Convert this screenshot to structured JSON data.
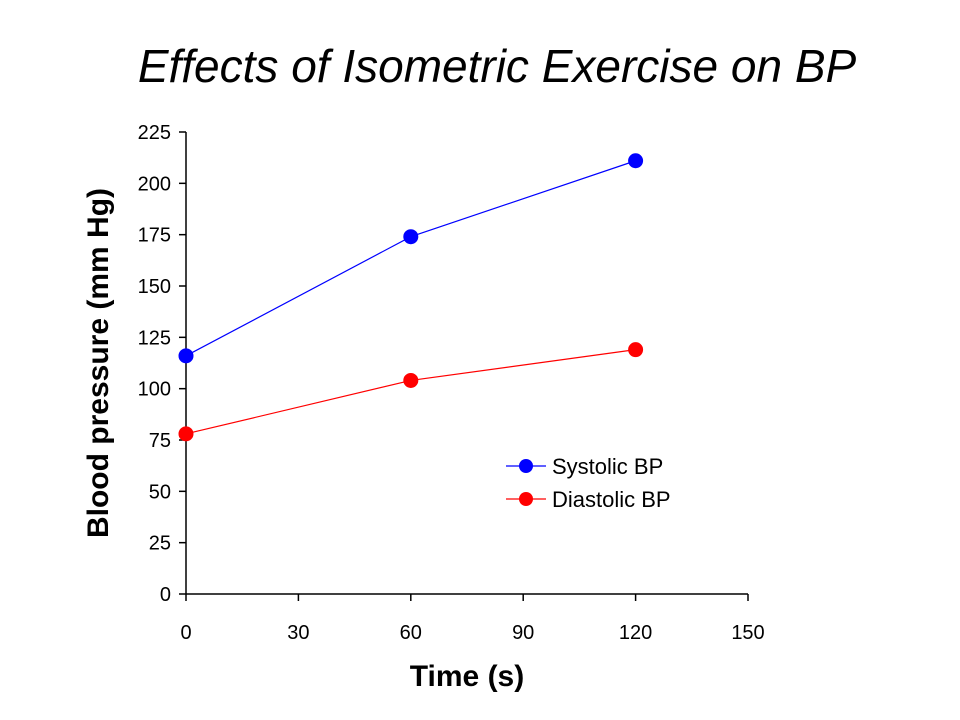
{
  "chart_data": {
    "type": "line",
    "title": "Effects of Isometric Exercise on BP",
    "xlabel": "Time (s)",
    "ylabel": "Blood pressure (mm Hg)",
    "xlim": [
      0,
      150
    ],
    "ylim": [
      0,
      225
    ],
    "xticks": [
      0,
      30,
      60,
      90,
      120,
      150
    ],
    "yticks": [
      0,
      25,
      50,
      75,
      100,
      125,
      150,
      175,
      200,
      225
    ],
    "grid": false,
    "legend_position": "lower-right",
    "series": [
      {
        "name": "Systolic BP",
        "color": "#0000ff",
        "x": [
          0,
          60,
          120
        ],
        "y": [
          116,
          174,
          211
        ]
      },
      {
        "name": "Diastolic BP",
        "color": "#ff0000",
        "x": [
          0,
          60,
          120
        ],
        "y": [
          78,
          104,
          119
        ]
      }
    ]
  }
}
